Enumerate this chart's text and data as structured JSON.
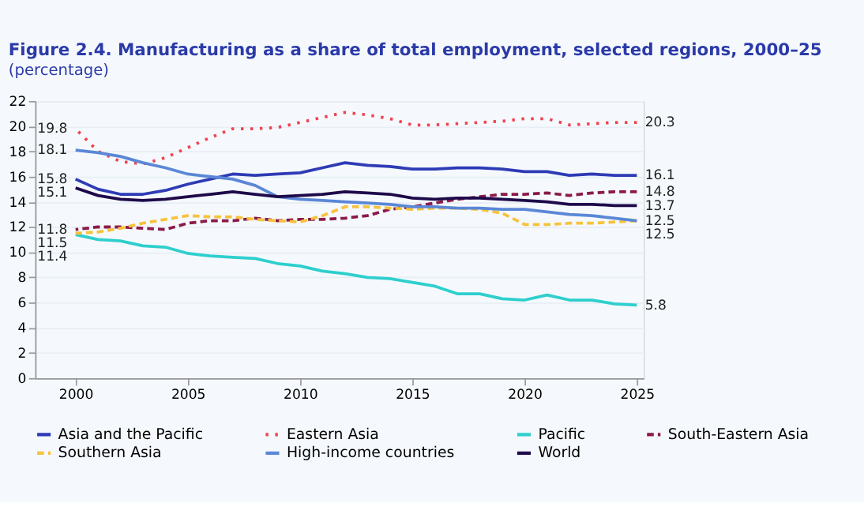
{
  "chart_data": {
    "type": "line",
    "title": "Figure 2.4. Manufacturing as a share of total employment, selected regions, 2000–25",
    "subtitle": "(percentage)",
    "x": [
      2000,
      2001,
      2002,
      2003,
      2004,
      2005,
      2006,
      2007,
      2008,
      2009,
      2010,
      2011,
      2012,
      2013,
      2014,
      2015,
      2016,
      2017,
      2018,
      2019,
      2020,
      2021,
      2022,
      2023,
      2024,
      2025
    ],
    "xlim": [
      1998.2,
      2025.3
    ],
    "xticks": [
      2000,
      2005,
      2010,
      2015,
      2020,
      2025
    ],
    "ylim": [
      0,
      22
    ],
    "yticks": [
      0,
      2,
      4,
      6,
      8,
      10,
      12,
      14,
      16,
      18,
      20,
      22
    ],
    "grid": "y",
    "legend": "bottom",
    "series": [
      {
        "name": "Asia and the Pacific",
        "color": "#2e3bb5",
        "line_style": "solid",
        "values": [
          15.8,
          15.0,
          14.6,
          14.6,
          14.9,
          15.4,
          15.8,
          16.2,
          16.1,
          16.2,
          16.3,
          16.7,
          17.1,
          16.9,
          16.8,
          16.6,
          16.6,
          16.7,
          16.7,
          16.6,
          16.4,
          16.4,
          16.1,
          16.2,
          16.1,
          16.1
        ],
        "value_labels": [
          "15.8",
          null,
          null,
          null,
          null,
          null,
          null,
          null,
          null,
          null,
          null,
          null,
          null,
          null,
          null,
          null,
          null,
          null,
          null,
          null,
          null,
          null,
          null,
          null,
          null,
          "16.1"
        ]
      },
      {
        "name": "Eastern Asia",
        "color": "#f0434f",
        "line_style": "dotted",
        "values": [
          19.8,
          18.0,
          17.2,
          17.0,
          17.5,
          18.3,
          19.1,
          19.8,
          19.8,
          19.9,
          20.3,
          20.7,
          21.1,
          20.9,
          20.6,
          20.1,
          20.1,
          20.2,
          20.3,
          20.4,
          20.6,
          20.6,
          20.1,
          20.2,
          20.3,
          20.3
        ],
        "value_labels": [
          "19.8",
          null,
          null,
          null,
          null,
          null,
          null,
          null,
          null,
          null,
          null,
          null,
          null,
          null,
          null,
          null,
          null,
          null,
          null,
          null,
          null,
          null,
          null,
          null,
          null,
          "20.3"
        ]
      },
      {
        "name": "Pacific",
        "color": "#2ecfcd",
        "line_style": "solid",
        "values": [
          11.4,
          11.0,
          10.9,
          10.5,
          10.4,
          9.9,
          9.7,
          9.6,
          9.5,
          9.1,
          8.9,
          8.5,
          8.3,
          8.0,
          7.9,
          7.6,
          7.3,
          6.7,
          6.7,
          6.3,
          6.2,
          6.6,
          6.2,
          6.2,
          5.9,
          5.8
        ],
        "value_labels": [
          "11.4",
          null,
          null,
          null,
          null,
          null,
          null,
          null,
          null,
          null,
          null,
          null,
          null,
          null,
          null,
          null,
          null,
          null,
          null,
          null,
          null,
          null,
          null,
          null,
          null,
          "5.8"
        ]
      },
      {
        "name": "South-Eastern Asia",
        "color": "#8b1a4a",
        "line_style": "dashed",
        "values": [
          11.8,
          12.0,
          12.0,
          11.9,
          11.8,
          12.3,
          12.5,
          12.5,
          12.7,
          12.5,
          12.6,
          12.6,
          12.7,
          12.9,
          13.4,
          13.6,
          13.9,
          14.2,
          14.4,
          14.6,
          14.6,
          14.7,
          14.5,
          14.7,
          14.8,
          14.8
        ],
        "value_labels": [
          "11.8",
          null,
          null,
          null,
          null,
          null,
          null,
          null,
          null,
          null,
          null,
          null,
          null,
          null,
          null,
          null,
          null,
          null,
          null,
          null,
          null,
          null,
          null,
          null,
          null,
          "14.8"
        ]
      },
      {
        "name": "Southern Asia",
        "color": "#f7c23c",
        "line_style": "dashed",
        "values": [
          11.5,
          11.6,
          11.9,
          12.3,
          12.6,
          12.9,
          12.8,
          12.8,
          12.6,
          12.5,
          12.4,
          12.9,
          13.6,
          13.6,
          13.5,
          13.4,
          13.5,
          13.5,
          13.4,
          13.1,
          12.2,
          12.2,
          12.3,
          12.3,
          12.4,
          12.5
        ],
        "value_labels": [
          "11.5",
          null,
          null,
          null,
          null,
          null,
          null,
          null,
          null,
          null,
          null,
          null,
          null,
          null,
          null,
          null,
          null,
          null,
          null,
          null,
          null,
          null,
          null,
          null,
          null,
          "12.5"
        ]
      },
      {
        "name": "High-income countries",
        "color": "#5b87d6",
        "line_style": "solid",
        "values": [
          18.1,
          17.9,
          17.6,
          17.1,
          16.7,
          16.2,
          16.0,
          15.8,
          15.3,
          14.4,
          14.2,
          14.1,
          14.0,
          13.9,
          13.8,
          13.6,
          13.6,
          13.5,
          13.5,
          13.4,
          13.4,
          13.2,
          13.0,
          12.9,
          12.7,
          12.5
        ],
        "value_labels": [
          "18.1",
          null,
          null,
          null,
          null,
          null,
          null,
          null,
          null,
          null,
          null,
          null,
          null,
          null,
          null,
          null,
          null,
          null,
          null,
          null,
          null,
          null,
          null,
          null,
          null,
          "12.5"
        ]
      },
      {
        "name": "World",
        "color": "#1e0a4a",
        "line_style": "solid",
        "values": [
          15.1,
          14.5,
          14.2,
          14.1,
          14.2,
          14.4,
          14.6,
          14.8,
          14.6,
          14.4,
          14.5,
          14.6,
          14.8,
          14.7,
          14.6,
          14.3,
          14.2,
          14.3,
          14.3,
          14.2,
          14.1,
          14.0,
          13.8,
          13.8,
          13.7,
          13.7
        ],
        "value_labels": [
          "15.1",
          null,
          null,
          null,
          null,
          null,
          null,
          null,
          null,
          null,
          null,
          null,
          null,
          null,
          null,
          null,
          null,
          null,
          null,
          null,
          null,
          null,
          null,
          null,
          null,
          "13.7"
        ]
      }
    ]
  }
}
